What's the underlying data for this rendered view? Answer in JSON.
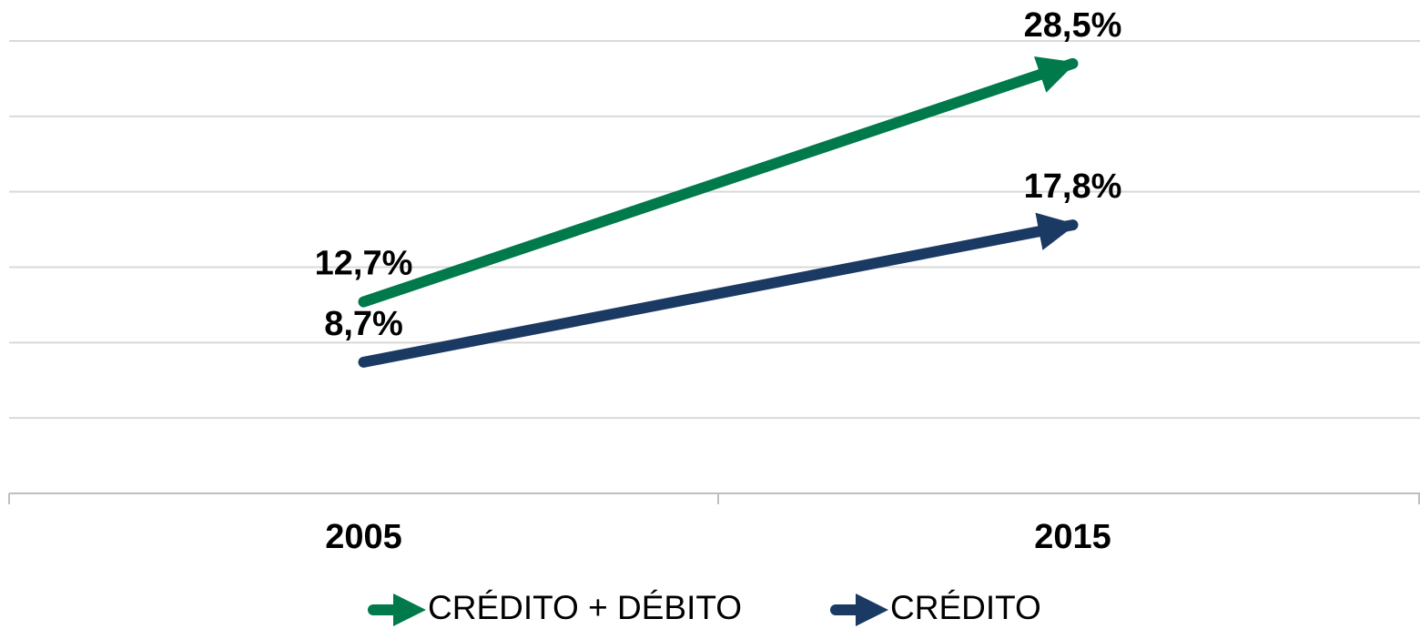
{
  "chart_data": {
    "type": "line",
    "categories": [
      "2005",
      "2015"
    ],
    "series": [
      {
        "name": "CRÉDITO + DÉBITO",
        "color": "#007a4a",
        "values": [
          12.7,
          28.5
        ],
        "value_labels": [
          "12,7%",
          "28,5%"
        ]
      },
      {
        "name": "CRÉDITO",
        "color": "#1b3a63",
        "values": [
          8.7,
          17.8
        ],
        "value_labels": [
          "8,7%",
          "17,8%"
        ]
      }
    ],
    "ylim": [
      0,
      30
    ],
    "yticks": [
      0,
      5,
      10,
      15,
      20,
      25,
      30
    ],
    "grid": true
  }
}
